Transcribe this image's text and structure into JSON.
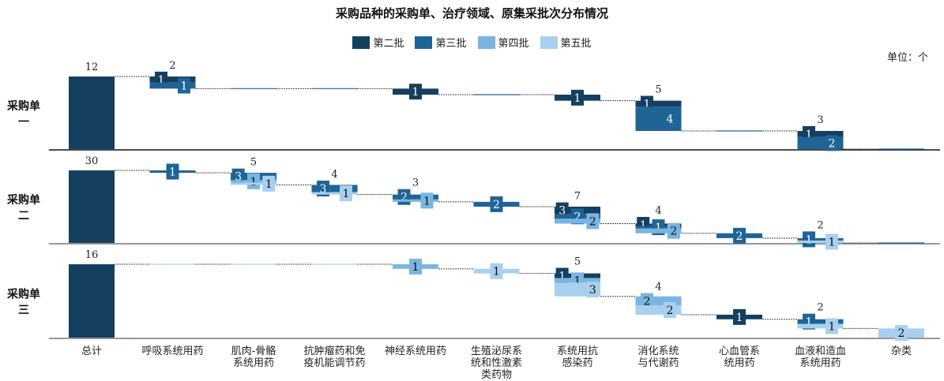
{
  "chart_data": {
    "type": "bar",
    "subtype": "waterfall",
    "title": "采购品种的采购单、治疗领域、原集采批次分布情况",
    "unit_label": "单位：个",
    "series": [
      {
        "name": "第二批",
        "color": "#153f60"
      },
      {
        "name": "第三批",
        "color": "#1f6497"
      },
      {
        "name": "第四批",
        "color": "#79b5e0"
      },
      {
        "name": "第五批",
        "color": "#a8d0ee"
      }
    ],
    "total_label": "总计",
    "categories": [
      [
        "呼吸系统用药"
      ],
      [
        "肌肉-骨骼",
        "系统用药"
      ],
      [
        "抗肿瘤药和免",
        "疫机能调节药"
      ],
      [
        "神经系统用药"
      ],
      [
        "生殖泌尿系",
        "统和性激素",
        "类药物"
      ],
      [
        "系统用抗",
        "感染药"
      ],
      [
        "消化系统",
        "与代谢药"
      ],
      [
        "心血管系",
        "统用药"
      ],
      [
        "血液和造血",
        "系统用药"
      ],
      [
        "杂类"
      ]
    ],
    "panels": [
      {
        "name": [
          "采购单",
          "一"
        ],
        "total": 12,
        "values": [
          [
            1,
            1,
            0,
            0
          ],
          [
            0,
            0,
            0,
            0
          ],
          [
            0,
            0,
            0,
            0
          ],
          [
            1,
            0,
            0,
            0
          ],
          [
            0,
            0,
            0,
            0
          ],
          [
            1,
            0,
            0,
            0
          ],
          [
            1,
            4,
            0,
            0
          ],
          [
            0,
            0,
            0,
            0
          ],
          [
            1,
            2,
            0,
            0
          ],
          [
            0,
            0,
            0,
            0
          ]
        ]
      },
      {
        "name": [
          "采购单",
          "二"
        ],
        "total": 30,
        "values": [
          [
            0,
            1,
            0,
            0
          ],
          [
            0,
            3,
            1,
            1
          ],
          [
            0,
            3,
            0,
            1
          ],
          [
            0,
            2,
            1,
            0
          ],
          [
            0,
            2,
            0,
            0
          ],
          [
            3,
            2,
            2,
            0
          ],
          [
            1,
            1,
            2,
            0
          ],
          [
            0,
            2,
            0,
            0
          ],
          [
            0,
            1,
            0,
            1
          ],
          [
            0,
            0,
            0,
            0
          ]
        ]
      },
      {
        "name": [
          "采购单",
          "三"
        ],
        "total": 16,
        "values": [
          [
            0,
            0,
            0,
            0
          ],
          [
            0,
            0,
            0,
            0
          ],
          [
            0,
            0,
            0,
            0
          ],
          [
            0,
            0,
            1,
            0
          ],
          [
            0,
            0,
            0,
            1
          ],
          [
            1,
            0,
            1,
            3
          ],
          [
            0,
            0,
            2,
            2
          ],
          [
            1,
            0,
            0,
            0
          ],
          [
            0,
            1,
            0,
            1
          ],
          [
            0,
            0,
            0,
            2
          ]
        ]
      }
    ]
  }
}
